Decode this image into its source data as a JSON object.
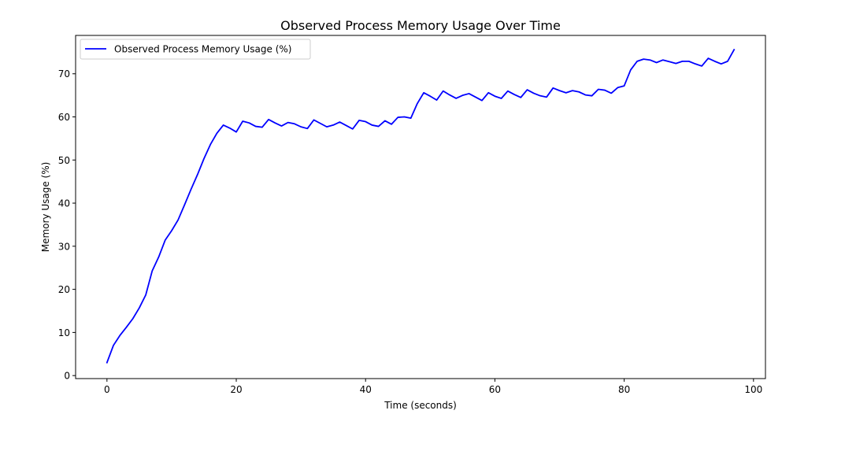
{
  "chart_data": {
    "type": "line",
    "title": "Observed Process Memory Usage Over Time",
    "xlabel": "Time (seconds)",
    "ylabel": "Memory Usage (%)",
    "xlim": [
      -4.85,
      101.85
    ],
    "ylim": [
      -0.7,
      78.9
    ],
    "xticks": [
      0,
      20,
      40,
      60,
      80,
      100
    ],
    "yticks": [
      0,
      10,
      20,
      30,
      40,
      50,
      60,
      70
    ],
    "grid": false,
    "legend_position": "upper-left",
    "series": [
      {
        "name": "Observed Process Memory Usage (%)",
        "color": "#0000ff",
        "x": [
          0,
          1,
          2,
          3,
          4,
          5,
          6,
          7,
          8,
          9,
          10,
          11,
          12,
          13,
          14,
          15,
          16,
          17,
          18,
          19,
          20,
          21,
          22,
          23,
          24,
          25,
          26,
          27,
          28,
          29,
          30,
          31,
          32,
          33,
          34,
          35,
          36,
          37,
          38,
          39,
          40,
          41,
          42,
          43,
          44,
          45,
          46,
          47,
          48,
          49,
          50,
          51,
          52,
          53,
          54,
          55,
          56,
          57,
          58,
          59,
          60,
          61,
          62,
          63,
          64,
          65,
          66,
          67,
          68,
          69,
          70,
          71,
          72,
          73,
          74,
          75,
          76,
          77,
          78,
          79,
          80,
          81,
          82,
          83,
          84,
          85,
          86,
          87,
          88,
          89,
          90,
          91,
          92,
          93,
          94,
          95,
          96,
          97
        ],
        "values": [
          3.0,
          7.0,
          9.3,
          11.2,
          13.2,
          15.7,
          18.7,
          24.3,
          27.5,
          31.4,
          33.6,
          36.1,
          39.6,
          43.2,
          46.6,
          50.3,
          53.6,
          56.2,
          58.1,
          57.4,
          56.5,
          59.0,
          58.6,
          57.8,
          57.6,
          59.4,
          58.6,
          57.9,
          58.7,
          58.4,
          57.7,
          57.3,
          59.3,
          58.5,
          57.7,
          58.1,
          58.8,
          58.0,
          57.2,
          59.2,
          58.9,
          58.1,
          57.8,
          59.1,
          58.3,
          59.9,
          60.0,
          59.7,
          63.1,
          65.6,
          64.8,
          63.9,
          66.0,
          65.1,
          64.3,
          65.0,
          65.4,
          64.6,
          63.8,
          65.6,
          64.8,
          64.3,
          66.0,
          65.2,
          64.5,
          66.3,
          65.5,
          64.9,
          64.6,
          66.7,
          66.1,
          65.6,
          66.1,
          65.8,
          65.1,
          64.9,
          66.4,
          66.2,
          65.5,
          66.8,
          67.2,
          70.9,
          72.9,
          73.4,
          73.2,
          72.6,
          73.2,
          72.8,
          72.4,
          72.9,
          72.9,
          72.3,
          71.8,
          73.6,
          72.9,
          72.3,
          72.9,
          75.6
        ]
      }
    ]
  }
}
